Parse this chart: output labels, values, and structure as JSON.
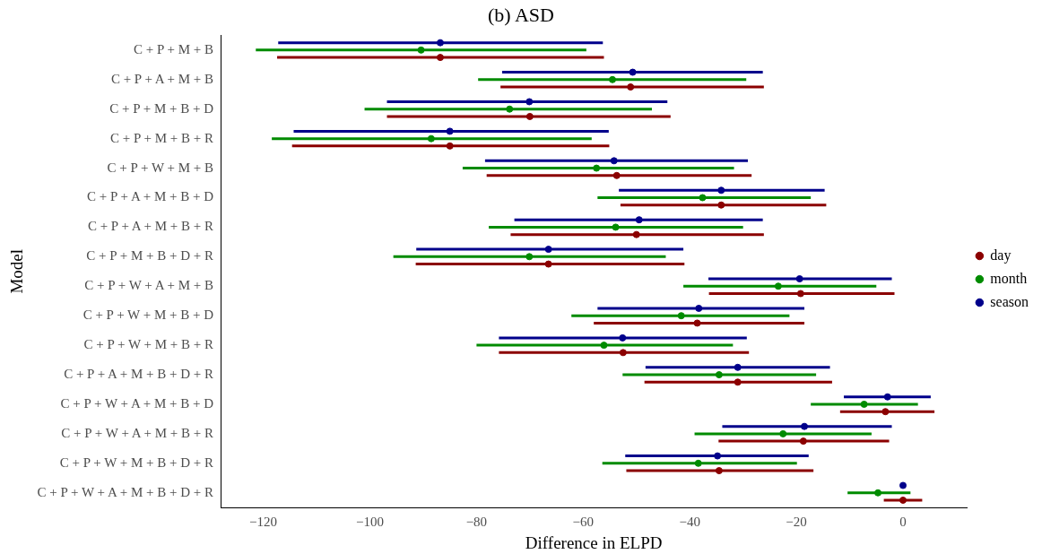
{
  "chart_data": {
    "type": "scatter",
    "title": "(b) ASD",
    "xlabel": "Difference in ELPD",
    "ylabel": "Model",
    "categories": [
      "C + P + M + B",
      "C + P + A + M + B",
      "C + P + M + B + D",
      "C + P + M + B + R",
      "C + P + W + M + B",
      "C + P + A + M + B + D",
      "C + P + A + M + B + R",
      "C + P + M + B + D + R",
      "C + P + W + A + M + B",
      "C + P + W + M + B + D",
      "C + P + W + M + B + R",
      "C + P + A + M + B + D + R",
      "C + P + W + A + M + B + D",
      "C + P + W + A + M + B + R",
      "C + P + W + M + B + D + R",
      "C + P + W + A + M + B + D + R"
    ],
    "series": [
      {
        "name": "day",
        "color": "#8b0000",
        "values": [
          -86.8,
          -51.1,
          -70,
          -85,
          -53.7,
          -34.1,
          -50,
          -66.5,
          -19.2,
          -38.6,
          -52.5,
          -31,
          -3.3,
          -18.7,
          -34.5,
          0
        ],
        "errors": [
          [
            -117.4,
            -56.1
          ],
          [
            -75.5,
            -26.1
          ],
          [
            -96.8,
            -43.6
          ],
          [
            -114.6,
            -55.1
          ],
          [
            -78.1,
            -28.4
          ],
          [
            -53,
            -14.4
          ],
          [
            -73.6,
            -26.1
          ],
          [
            -91.4,
            -41
          ],
          [
            -36.4,
            -1.6
          ],
          [
            -58,
            -18.5
          ],
          [
            -75.8,
            -28.9
          ],
          [
            -48.5,
            -13.3
          ],
          [
            -11.8,
            5.9
          ],
          [
            -34.6,
            -2.6
          ],
          [
            -51.9,
            -16.8
          ],
          [
            -3.6,
            3.6
          ]
        ]
      },
      {
        "name": "month",
        "color": "#008b00",
        "values": [
          -90.4,
          -54.5,
          -73.8,
          -88.5,
          -57.5,
          -37.6,
          -53.9,
          -70.1,
          -23.4,
          -41.6,
          -56.1,
          -34.5,
          -7.3,
          -22.5,
          -38.4,
          -4.7
        ],
        "errors": [
          [
            -121.4,
            -59.4
          ],
          [
            -79.7,
            -29.4
          ],
          [
            -101,
            -47.1
          ],
          [
            -118.4,
            -58.4
          ],
          [
            -82.6,
            -31.7
          ],
          [
            -57.3,
            -17.3
          ],
          [
            -77.7,
            -30
          ],
          [
            -95.6,
            -44.5
          ],
          [
            -41.2,
            -5
          ],
          [
            -62.2,
            -21.3
          ],
          [
            -80,
            -31.9
          ],
          [
            -52.6,
            -16.3
          ],
          [
            -17.3,
            2.8
          ],
          [
            -39.1,
            -5.9
          ],
          [
            -56.4,
            -19.9
          ],
          [
            -10.4,
            1.4
          ]
        ]
      },
      {
        "name": "season",
        "color": "#00008b",
        "values": [
          -86.8,
          -50.7,
          -70.1,
          -85,
          -54.2,
          -34.1,
          -49.5,
          -66.5,
          -19.4,
          -38.3,
          -52.6,
          -31,
          -2.9,
          -18.5,
          -34.8,
          0
        ],
        "errors": [
          [
            -117.2,
            -56.3
          ],
          [
            -75.2,
            -26.3
          ],
          [
            -96.8,
            -44.2
          ],
          [
            -114.3,
            -55.2
          ],
          [
            -78.4,
            -29.1
          ],
          [
            -53.3,
            -14.7
          ],
          [
            -72.9,
            -26.3
          ],
          [
            -91.3,
            -41.2
          ],
          [
            -36.5,
            -2.1
          ],
          [
            -57.3,
            -18.5
          ],
          [
            -75.8,
            -29.3
          ],
          [
            -48.3,
            -13.7
          ],
          [
            -11.1,
            5.2
          ],
          [
            -33.9,
            -2.1
          ],
          [
            -52.1,
            -17.7
          ],
          null
        ]
      }
    ],
    "xlim": [
      -128,
      12
    ],
    "xticks": [
      {
        "value": -120,
        "label": "−120"
      },
      {
        "value": -100,
        "label": "−100"
      },
      {
        "value": -80,
        "label": "−80"
      },
      {
        "value": -60,
        "label": "−60"
      },
      {
        "value": -40,
        "label": "−40"
      },
      {
        "value": -20,
        "label": "−20"
      },
      {
        "value": 0,
        "label": "0"
      }
    ],
    "orientation": "horizontal",
    "grid": false,
    "legend": "right",
    "marker": "circle"
  }
}
